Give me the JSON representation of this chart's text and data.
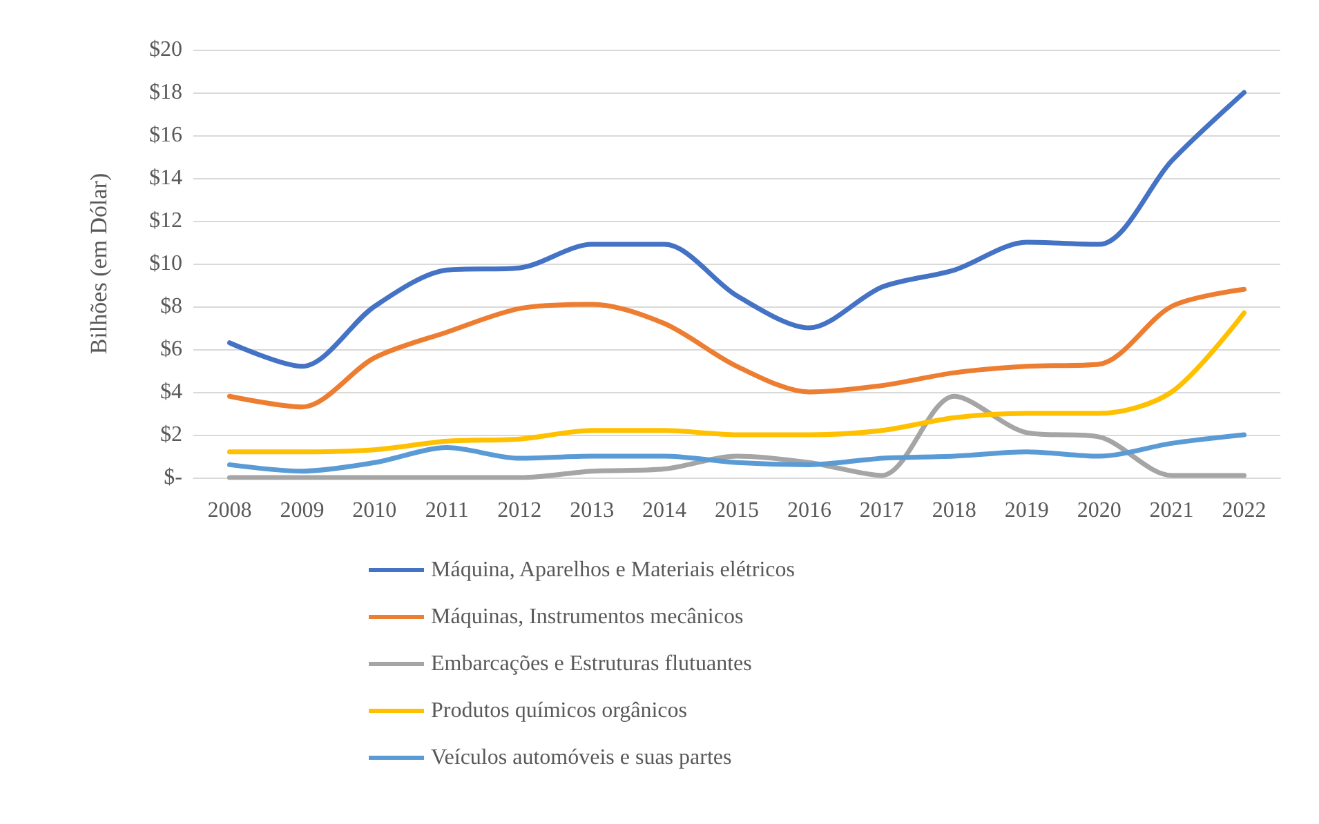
{
  "chart_data": {
    "type": "line",
    "ylabel": "Bilhões (em Dólar)",
    "categories": [
      "2008",
      "2009",
      "2010",
      "2011",
      "2012",
      "2013",
      "2014",
      "2015",
      "2016",
      "2017",
      "2018",
      "2019",
      "2020",
      "2021",
      "2022"
    ],
    "series": [
      {
        "name": "Máquina, Aparelhos e Materiais elétricos",
        "color": "#4472c4",
        "values": [
          6.3,
          5.2,
          8.0,
          9.7,
          9.8,
          10.9,
          10.9,
          8.5,
          7.0,
          8.9,
          9.7,
          11.0,
          10.9,
          14.8,
          18.0
        ]
      },
      {
        "name": "Máquinas, Instrumentos mecânicos",
        "color": "#ed7d31",
        "values": [
          3.8,
          3.3,
          5.6,
          6.8,
          7.9,
          8.1,
          7.2,
          5.2,
          4.0,
          4.3,
          4.9,
          5.2,
          5.3,
          8.0,
          8.8
        ]
      },
      {
        "name": "Embarcações e Estruturas flutuantes",
        "color": "#a5a5a5",
        "values": [
          0,
          0,
          0,
          0,
          0,
          0.3,
          0.4,
          1.0,
          0.7,
          0.1,
          3.8,
          2.1,
          1.9,
          0.1,
          0.1
        ]
      },
      {
        "name": "Produtos químicos orgânicos",
        "color": "#ffc000",
        "values": [
          1.2,
          1.2,
          1.3,
          1.7,
          1.8,
          2.2,
          2.2,
          2.0,
          2.0,
          2.2,
          2.8,
          3.0,
          3.0,
          4.0,
          7.7
        ]
      },
      {
        "name": "Veículos automóveis e suas partes",
        "color": "#5b9bd5",
        "values": [
          0.6,
          0.3,
          0.7,
          1.4,
          0.9,
          1.0,
          1.0,
          0.7,
          0.6,
          0.9,
          1.0,
          1.2,
          1.0,
          1.6,
          2.0
        ]
      }
    ],
    "ylim": [
      0,
      20
    ],
    "yticks": [
      {
        "value": 0,
        "label": "$-"
      },
      {
        "value": 2,
        "label": "$2"
      },
      {
        "value": 4,
        "label": "$4"
      },
      {
        "value": 6,
        "label": "$6"
      },
      {
        "value": 8,
        "label": "$8"
      },
      {
        "value": 10,
        "label": "$10"
      },
      {
        "value": 12,
        "label": "$12"
      },
      {
        "value": 14,
        "label": "$14"
      },
      {
        "value": 16,
        "label": "$16"
      },
      {
        "value": 18,
        "label": "$18"
      },
      {
        "value": 20,
        "label": "$20"
      }
    ],
    "grid": "y",
    "legend": "bottom",
    "marker": "none",
    "line_style": "solid"
  }
}
